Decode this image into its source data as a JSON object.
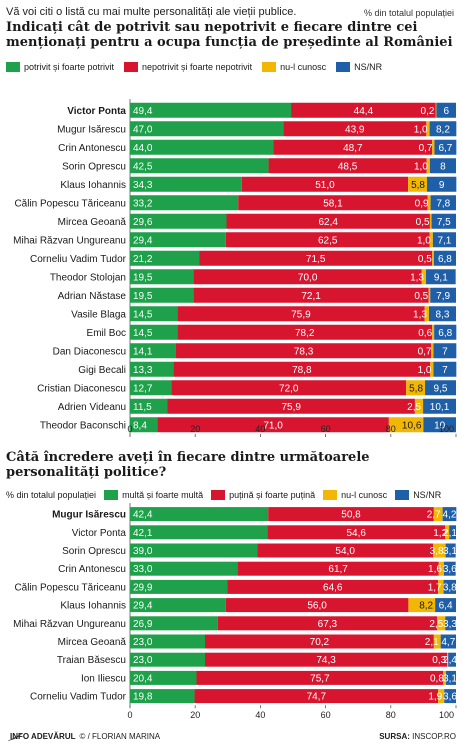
{
  "header": {
    "intro": "Vă voi citi o listă cu mai multe personalități ale vieții publice.",
    "pct_note": "% din totalul populației",
    "title1": "Indicați cât de potrivit sau nepotrivit e fiecare dintre cei menționați pentru a ocupa funcția de președinte al României",
    "title2": "Câtă încredere aveți în fiecare dintre următoarele personalități politice?",
    "pct_note2": "% din totalul populației"
  },
  "colors": {
    "green": "#1ea14a",
    "red": "#d8152f",
    "yellow": "#f2b705",
    "blue": "#1f5fa8"
  },
  "chart_data": [
    {
      "type": "bar",
      "stacked": true,
      "orientation": "horizontal",
      "title": "Indicați cât de potrivit sau nepotrivit e fiecare dintre cei menționați pentru a ocupa funcția de președinte al României",
      "xlim": [
        0,
        100
      ],
      "ticks": [
        "0",
        "20",
        "40",
        "60",
        "80",
        "100"
      ],
      "series": [
        {
          "name": "potrivit și foarte potrivit",
          "color": "#1ea14a"
        },
        {
          "name": "nepotrivit și foarte nepotrivit",
          "color": "#d8152f"
        },
        {
          "name": "nu-l cunosc",
          "color": "#f2b705"
        },
        {
          "name": "NS/NR",
          "color": "#1f5fa8"
        }
      ],
      "rows": [
        {
          "name": "Victor Ponta",
          "bold": true,
          "values": [
            49.4,
            44.4,
            0.2,
            6
          ],
          "labels": [
            "49,4",
            "44,4",
            "0,2",
            "6"
          ]
        },
        {
          "name": "Mugur Isărescu",
          "values": [
            47.0,
            43.9,
            1.0,
            8.2
          ],
          "labels": [
            "47,0",
            "43,9",
            "1,0",
            "8,2"
          ]
        },
        {
          "name": "Crin Antonescu",
          "values": [
            44.0,
            48.7,
            0.7,
            6.7
          ],
          "labels": [
            "44,0",
            "48,7",
            "0,7",
            "6,7"
          ]
        },
        {
          "name": "Sorin Oprescu",
          "values": [
            42.5,
            48.5,
            1.0,
            8
          ],
          "labels": [
            "42,5",
            "48,5",
            "1,0",
            "8"
          ]
        },
        {
          "name": "Klaus Iohannis",
          "values": [
            34.3,
            51.0,
            5.8,
            9
          ],
          "labels": [
            "34,3",
            "51,0",
            "5,8",
            "9"
          ]
        },
        {
          "name": "Călin Popescu Tăriceanu",
          "values": [
            33.2,
            58.1,
            0.9,
            7.8
          ],
          "labels": [
            "33,2",
            "58,1",
            "0,9",
            "7,8"
          ]
        },
        {
          "name": "Mircea Geoană",
          "values": [
            29.6,
            62.4,
            0.5,
            7.5
          ],
          "labels": [
            "29,6",
            "62,4",
            "0,5",
            "7,5"
          ]
        },
        {
          "name": "Mihai Răzvan Ungureanu",
          "values": [
            29.4,
            62.5,
            1.0,
            7.1
          ],
          "labels": [
            "29,4",
            "62,5",
            "1,0",
            "7,1"
          ]
        },
        {
          "name": "Corneliu Vadim Tudor",
          "values": [
            21.2,
            71.5,
            0.5,
            6.8
          ],
          "labels": [
            "21,2",
            "71,5",
            "0,5",
            "6,8"
          ]
        },
        {
          "name": "Theodor Stolojan",
          "values": [
            19.5,
            70.0,
            1.3,
            9.1
          ],
          "labels": [
            "19,5",
            "70,0",
            "1,3",
            "9,1"
          ]
        },
        {
          "name": "Adrian Năstase",
          "values": [
            19.5,
            72.1,
            0.5,
            7.9
          ],
          "labels": [
            "19,5",
            "72,1",
            "0,5",
            "7,9"
          ]
        },
        {
          "name": "Vasile Blaga",
          "values": [
            14.5,
            75.9,
            1.3,
            8.3
          ],
          "labels": [
            "14,5",
            "75,9",
            "1,3",
            "8,3"
          ]
        },
        {
          "name": "Emil Boc",
          "values": [
            14.5,
            78.2,
            0.6,
            6.8
          ],
          "labels": [
            "14,5",
            "78,2",
            "0,6",
            "6,8"
          ]
        },
        {
          "name": "Dan Diaconescu",
          "values": [
            14.1,
            78.3,
            0.7,
            7
          ],
          "labels": [
            "14,1",
            "78,3",
            "0,7",
            "7"
          ]
        },
        {
          "name": "Gigi Becali",
          "values": [
            13.3,
            78.8,
            1.0,
            7
          ],
          "labels": [
            "13,3",
            "78,8",
            "1,0",
            "7"
          ]
        },
        {
          "name": "Cristian Diaconescu",
          "values": [
            12.7,
            72.0,
            5.8,
            9.5
          ],
          "labels": [
            "12,7",
            "72,0",
            "5,8",
            "9,5"
          ]
        },
        {
          "name": "Adrien Videanu",
          "values": [
            11.5,
            75.9,
            2.5,
            10.1
          ],
          "labels": [
            "11,5",
            "75,9",
            "2,5",
            "10,1"
          ]
        },
        {
          "name": "Theodor Baconschi",
          "values": [
            8.4,
            71.0,
            10.6,
            10
          ],
          "labels": [
            "8,4",
            "71,0",
            "10,6",
            "10"
          ]
        }
      ]
    },
    {
      "type": "bar",
      "stacked": true,
      "orientation": "horizontal",
      "title": "Câtă încredere aveți în fiecare dintre următoarele personalități politice?",
      "xlim": [
        0,
        100
      ],
      "ticks": [
        "0",
        "20",
        "40",
        "60",
        "80",
        "100"
      ],
      "series": [
        {
          "name": "multă și foarte multă",
          "color": "#1ea14a"
        },
        {
          "name": "puțină și foarte puțină",
          "color": "#d8152f"
        },
        {
          "name": "nu-l cunosc",
          "color": "#f2b705"
        },
        {
          "name": "NS/NR",
          "color": "#1f5fa8"
        }
      ],
      "rows": [
        {
          "name": "Mugur Isărescu",
          "bold": true,
          "values": [
            42.4,
            50.8,
            2.7,
            4.2
          ],
          "labels": [
            "42,4",
            "50,8",
            "2,7",
            "4,2"
          ]
        },
        {
          "name": "Victor Ponta",
          "values": [
            42.1,
            54.6,
            1.2,
            2.1
          ],
          "labels": [
            "42,1",
            "54,6",
            "1,2",
            "2,1"
          ]
        },
        {
          "name": "Sorin Oprescu",
          "values": [
            39.0,
            54.0,
            3.8,
            3.1
          ],
          "labels": [
            "39,0",
            "54,0",
            "3,8",
            "3,1"
          ]
        },
        {
          "name": "Crin Antonescu",
          "values": [
            33.0,
            61.7,
            1.6,
            3.6
          ],
          "labels": [
            "33,0",
            "61,7",
            "1,6",
            "3,6"
          ]
        },
        {
          "name": "Călin Popescu Tăriceanu",
          "values": [
            29.9,
            64.6,
            1.7,
            3.8
          ],
          "labels": [
            "29,9",
            "64,6",
            "1,7",
            "3,8"
          ]
        },
        {
          "name": "Klaus Iohannis",
          "values": [
            29.4,
            56.0,
            8.2,
            6.4
          ],
          "labels": [
            "29,4",
            "56,0",
            "8,2",
            "6,4"
          ]
        },
        {
          "name": "Mihai Răzvan Ungureanu",
          "values": [
            26.9,
            67.3,
            2.5,
            3.3
          ],
          "labels": [
            "26,9",
            "67,3",
            "2,5",
            "3,3"
          ]
        },
        {
          "name": "Mircea Geoană",
          "values": [
            23.0,
            70.2,
            2.1,
            4.7
          ],
          "labels": [
            "23,0",
            "70,2",
            "2,1",
            "4,7"
          ]
        },
        {
          "name": "Traian Băsescu",
          "values": [
            23.0,
            74.3,
            0.3,
            2.4
          ],
          "labels": [
            "23,0",
            "74,3",
            "0,3",
            "2,4"
          ]
        },
        {
          "name": "Ion Iliescu",
          "values": [
            20.4,
            75.7,
            0.8,
            3.1
          ],
          "labels": [
            "20,4",
            "75,7",
            "0,8",
            "3,1"
          ]
        },
        {
          "name": "Corneliu Vadim Tudor",
          "values": [
            19.8,
            74.7,
            1.9,
            3.6
          ],
          "labels": [
            "19,8",
            "74,7",
            "1,9",
            "3,6"
          ]
        }
      ]
    }
  ],
  "footer": {
    "brand": "INFO ADEVĂRUL",
    "credit": "© / FLORIAN MARINA",
    "source_label": "SURSA:",
    "source": "INSCOP.RO"
  }
}
